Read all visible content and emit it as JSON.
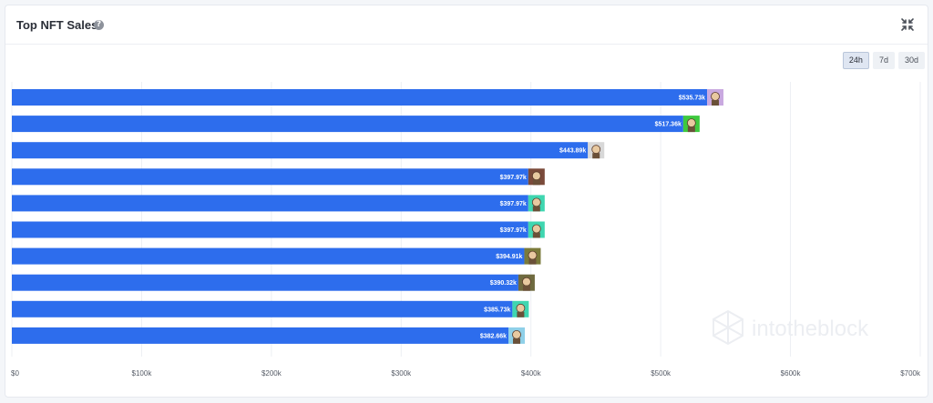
{
  "header": {
    "title": "Top NFT Sales",
    "help_icon": "help-circle-icon",
    "collapse_icon": "collapse-arrows-icon"
  },
  "tabs": [
    {
      "label": "24h",
      "active": true
    },
    {
      "label": "7d",
      "active": false
    },
    {
      "label": "30d",
      "active": false
    }
  ],
  "watermark": "intotheblock",
  "colors": {
    "bar": "#2d6ded",
    "grid": "#eceff3"
  },
  "chart_data": {
    "type": "bar",
    "orientation": "horizontal",
    "title": "Top NFT Sales",
    "xlim": [
      0,
      700000
    ],
    "x_ticks": [
      0,
      100000,
      200000,
      300000,
      400000,
      500000,
      600000,
      700000
    ],
    "x_tick_labels": [
      "$0",
      "$100k",
      "$200k",
      "$300k",
      "$400k",
      "$500k",
      "$600k",
      "$700k"
    ],
    "grid": true,
    "values": [
      535730,
      517360,
      443890,
      397970,
      397970,
      397970,
      394910,
      390320,
      385730,
      382660
    ],
    "labels": [
      "$535.73k",
      "$517.36k",
      "$443.89k",
      "$397.97k",
      "$397.97k",
      "$397.97k",
      "$394.91k",
      "$390.32k",
      "$385.73k",
      "$382.66k"
    ],
    "thumbnail_colors": [
      "#c9a9e0",
      "#3ec93e",
      "#d8d8d8",
      "#7a4a3a",
      "#3fd6b0",
      "#3fd6b0",
      "#7a7a3a",
      "#6f6a3f",
      "#3fd6b0",
      "#8fd0e8"
    ]
  }
}
